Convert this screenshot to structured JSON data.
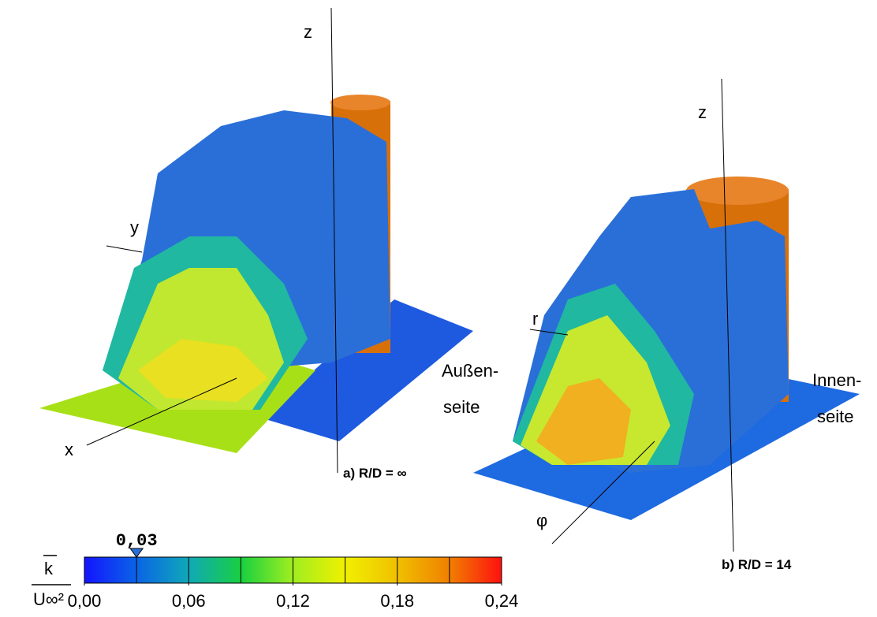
{
  "panels": [
    {
      "caption": "a) R/D = ∞",
      "axis_labels": [
        "z",
        "y",
        "x"
      ]
    },
    {
      "caption": "b) R/D = 14",
      "axis_labels": [
        "z",
        "r",
        "φ"
      ],
      "side_labels": [
        [
          "Außen-",
          "seite"
        ],
        [
          "Innen-",
          "seite"
        ]
      ]
    }
  ],
  "colorbar": {
    "quantity": "k",
    "normalizer": "U∞²",
    "lim": [
      0,
      0.24
    ],
    "ticks": [
      {
        "value": 0,
        "label": "0,00"
      },
      {
        "value": 0.06,
        "label": "0,06"
      },
      {
        "value": 0.12,
        "label": "0,12"
      },
      {
        "value": 0.18,
        "label": "0,18"
      },
      {
        "value": 0.24,
        "label": "0,24"
      }
    ],
    "levels": [
      0.03,
      0.06,
      0.09,
      0.12,
      0.15,
      0.18,
      0.21
    ],
    "marker": {
      "value": 0.03,
      "label": "0,03"
    },
    "colors": [
      "#1414ff",
      "#0a64e6",
      "#10a8b8",
      "#18d040",
      "#a0ee20",
      "#f0f000",
      "#f0c000",
      "#f08000",
      "#ff1010"
    ]
  }
}
